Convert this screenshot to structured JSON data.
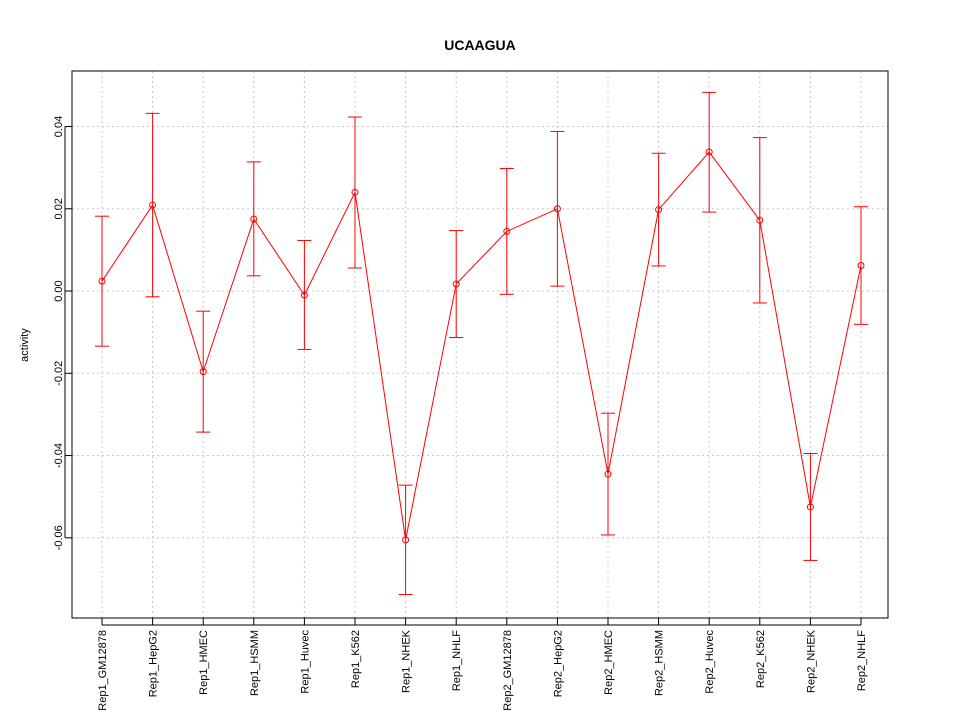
{
  "chart_data": {
    "type": "line",
    "title": "UCAAGUA",
    "xlabel": "",
    "ylabel": "activity",
    "color": "#ff0000",
    "grid": true,
    "ylim": [
      -0.0795,
      0.0535
    ],
    "yticks": [
      -0.06,
      -0.04,
      -0.02,
      0.0,
      0.02,
      0.04
    ],
    "ytick_labels": [
      "-0.06",
      "-0.04",
      "-0.02",
      "0.00",
      "0.02",
      "0.04"
    ],
    "categories": [
      "Rep1_GM12878",
      "Rep1_HepG2",
      "Rep1_HMEC",
      "Rep1_HSMM",
      "Rep1_Huvec",
      "Rep1_K562",
      "Rep1_NHEK",
      "Rep1_NHLF",
      "Rep2_GM12878",
      "Rep2_HepG2",
      "Rep2_HMEC",
      "Rep2_HSMM",
      "Rep2_Huvec",
      "Rep2_K562",
      "Rep2_NHEK",
      "Rep2_NHLF"
    ],
    "values": [
      0.0024,
      0.0209,
      -0.0196,
      0.0175,
      -0.001,
      0.024,
      -0.0605,
      0.0017,
      0.0145,
      0.02,
      -0.0445,
      0.0198,
      0.0338,
      0.0172,
      -0.0525,
      0.0062
    ],
    "upper": [
      0.0182,
      0.0432,
      -0.0049,
      0.0314,
      0.0123,
      0.0423,
      -0.0472,
      0.0147,
      0.0298,
      0.0388,
      -0.0297,
      0.0335,
      0.0483,
      0.0373,
      -0.0395,
      0.0205
    ],
    "lower": [
      -0.0134,
      -0.0014,
      -0.0343,
      0.0037,
      -0.0142,
      0.0056,
      -0.0738,
      -0.0113,
      -0.0008,
      0.0012,
      -0.0593,
      0.0061,
      0.0192,
      -0.0029,
      -0.0655,
      -0.0081
    ]
  }
}
